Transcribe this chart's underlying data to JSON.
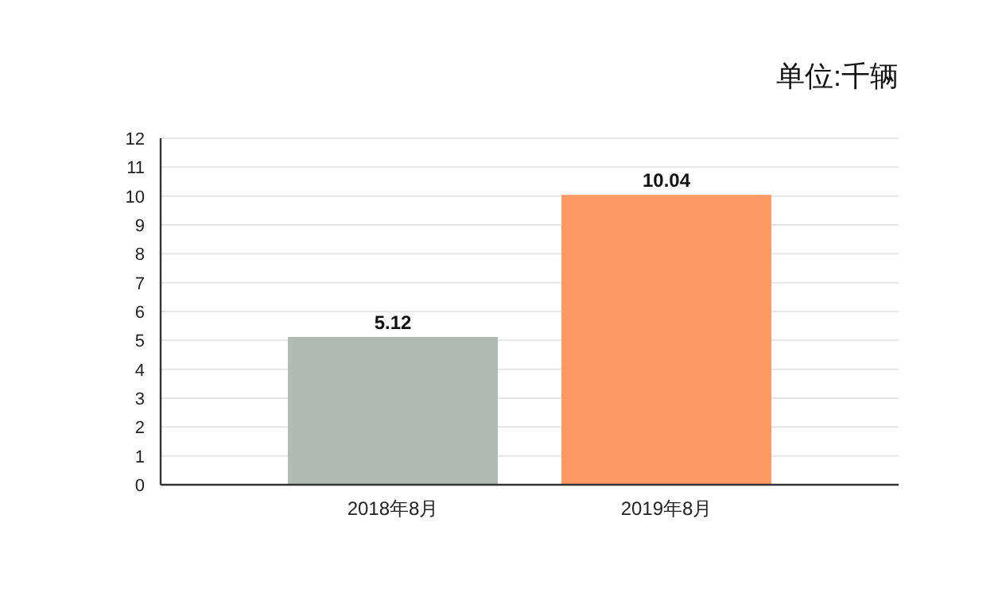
{
  "chart_data": {
    "type": "bar",
    "categories": [
      "2018年8月",
      "2019年8月"
    ],
    "values": [
      5.12,
      10.04
    ],
    "colors": [
      "#b2bbb3",
      "#fd9965"
    ],
    "ylim": [
      0,
      12
    ],
    "yticks": [
      0,
      1,
      2,
      3,
      4,
      5,
      6,
      7,
      8,
      9,
      10,
      11,
      12
    ],
    "grid": "y",
    "data_labels": true,
    "annotations": [
      "单位:千辆"
    ]
  }
}
